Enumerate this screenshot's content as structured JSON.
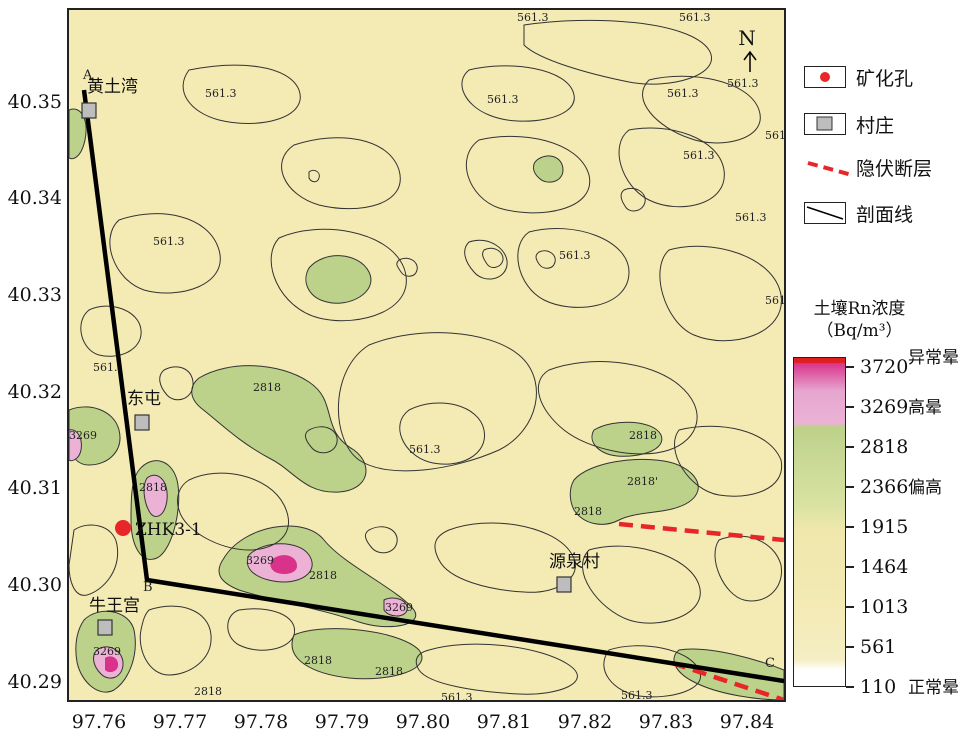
{
  "y_axis": {
    "ticks": [
      "40.35",
      "40.34",
      "40.33",
      "40.32",
      "40.31",
      "40.30",
      "40.29"
    ]
  },
  "x_axis": {
    "ticks": [
      "97.76",
      "97.77",
      "97.78",
      "97.79",
      "97.80",
      "97.81",
      "97.82",
      "97.83",
      "97.84"
    ]
  },
  "north_arrow": {
    "label": "N",
    "icon": "north-arrow-icon"
  },
  "legend": {
    "items": [
      {
        "label": "矿化孔",
        "icon": "red-dot-icon",
        "color": "#e8262a"
      },
      {
        "label": "村庄",
        "icon": "gray-square-icon",
        "color": "#bdbdbd"
      },
      {
        "label": "隐伏断层",
        "icon": "dashed-fault-icon",
        "color": "#e8262a"
      },
      {
        "label": "剖面线",
        "icon": "profile-line-icon",
        "color": "#000000"
      }
    ]
  },
  "colorbar": {
    "title_line1": "土壤Rn浓度",
    "title_line2": "（Bq/m³）",
    "ticks": [
      "3720",
      "3269",
      "2818",
      "2366",
      "1915",
      "1464",
      "1013",
      "561",
      "110"
    ],
    "bands": [
      "异常晕",
      "高晕",
      "偏高",
      "正常晕"
    ],
    "colors": {
      "high": "#d8328a",
      "pink": "#ebb2d6",
      "green": "#bcd18a",
      "yellow": "#f3eab4",
      "low": "#ffffff",
      "top": "#e02020"
    }
  },
  "places": {
    "huangtuwan": "黄土湾",
    "dongtun": "东屯",
    "niuwanggong": "牛王宫",
    "yuanquancun": "源泉村"
  },
  "drill_hole": "ZHK3-1",
  "profile_points": {
    "a": "A",
    "b": "B",
    "c": "C"
  },
  "contour_labels": {
    "c561": "561.3",
    "c561_short": "561.",
    "c2818": "2818",
    "c2818_alt": "2818'",
    "c3269": "3269"
  }
}
